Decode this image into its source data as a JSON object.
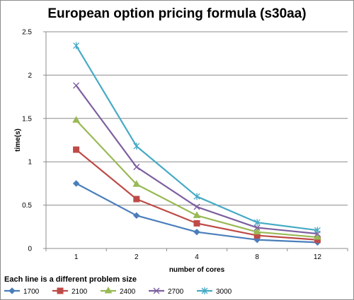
{
  "chart_data": {
    "type": "line",
    "title": "European option pricing formula (s30aa)",
    "xlabel": "number of cores",
    "ylabel": "time(s)",
    "categories": [
      "1",
      "2",
      "4",
      "8",
      "12"
    ],
    "ylim": [
      0,
      2.5
    ],
    "yticks": [
      "0",
      "0.5",
      "1",
      "1.5",
      "2",
      "2.5"
    ],
    "grid": true,
    "legend_title": "Each line is a different  problem size",
    "legend_position": "bottom",
    "series": [
      {
        "name": "1700",
        "values": [
          0.75,
          0.38,
          0.19,
          0.1,
          0.07
        ],
        "color": "#4a7ebb",
        "marker": "diamond"
      },
      {
        "name": "2100",
        "values": [
          1.14,
          0.57,
          0.29,
          0.15,
          0.1
        ],
        "color": "#be4b48",
        "marker": "square"
      },
      {
        "name": "2400",
        "values": [
          1.48,
          0.74,
          0.38,
          0.19,
          0.13
        ],
        "color": "#98b954",
        "marker": "triangle"
      },
      {
        "name": "2700",
        "values": [
          1.88,
          0.94,
          0.48,
          0.24,
          0.17
        ],
        "color": "#7d60a0",
        "marker": "x"
      },
      {
        "name": "3000",
        "values": [
          2.34,
          1.18,
          0.6,
          0.3,
          0.21
        ],
        "color": "#46aac5",
        "marker": "star"
      }
    ]
  }
}
